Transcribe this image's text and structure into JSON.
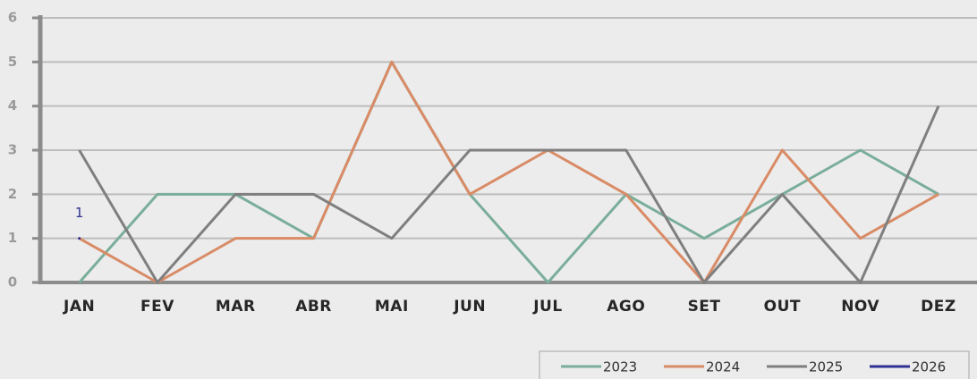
{
  "chart_data": {
    "type": "line",
    "categories": [
      "JAN",
      "FEV",
      "MAR",
      "ABR",
      "MAI",
      "JUN",
      "JUL",
      "AGO",
      "SET",
      "OUT",
      "NOV",
      "DEZ"
    ],
    "series": [
      {
        "name": "2023",
        "color": "#7aae9a",
        "values": [
          0,
          2,
          2,
          1,
          5,
          2,
          0,
          2,
          1,
          2,
          3,
          2
        ]
      },
      {
        "name": "2024",
        "color": "#d98b66",
        "values": [
          1,
          0,
          1,
          1,
          5,
          2,
          3,
          2,
          0,
          3,
          1,
          2
        ]
      },
      {
        "name": "2025",
        "color": "#7f7f7f",
        "values": [
          3,
          0,
          2,
          2,
          1,
          3,
          3,
          3,
          0,
          2,
          0,
          4
        ]
      },
      {
        "name": "2026",
        "color": "#2e3192",
        "values": [
          1,
          null,
          null,
          null,
          null,
          null,
          null,
          null,
          null,
          null,
          null,
          null
        ]
      }
    ],
    "ylim": [
      0,
      6
    ],
    "yticks": [
      0,
      1,
      2,
      3,
      4,
      5,
      6
    ],
    "grid": true,
    "legend": "bottom-right"
  }
}
